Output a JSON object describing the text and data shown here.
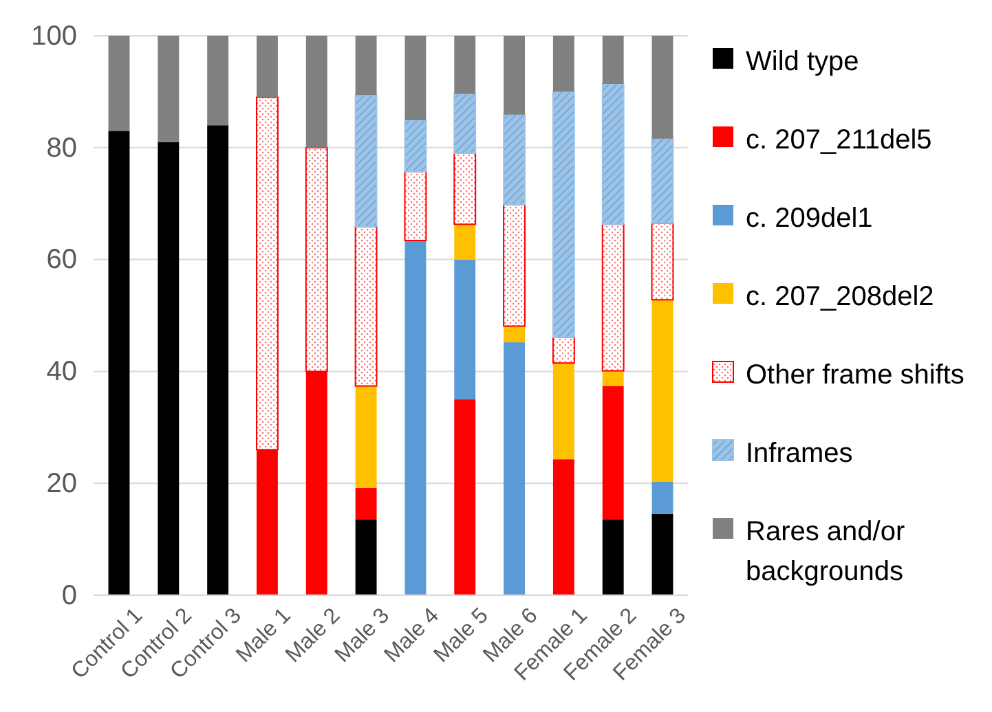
{
  "chart_data": {
    "type": "bar",
    "stacked": true,
    "legend": "right",
    "grid": "y",
    "categories": [
      "Control 1",
      "Control 2",
      "Control 3",
      "Male 1",
      "Male 2",
      "Male 3",
      "Male 4",
      "Male 5",
      "Male 6",
      "Female 1",
      "Female 2",
      "Female 3"
    ],
    "ylim": [
      0,
      100
    ],
    "yticks": [
      0,
      20,
      40,
      60,
      80,
      100
    ],
    "series": [
      {
        "name": "Wild type",
        "color": "#000000",
        "values": [
          83,
          81,
          84,
          0,
          0,
          13.5,
          0,
          0,
          0,
          0,
          13.5,
          14.5
        ]
      },
      {
        "name": "c. 207_211del5",
        "color": "#ff0000",
        "values": [
          0,
          0,
          0,
          26,
          40,
          5.7,
          0,
          35,
          0,
          24.3,
          23.9,
          0
        ]
      },
      {
        "name": "c. 209del1",
        "color": "#5b9bd5",
        "values": [
          0,
          0,
          0,
          0,
          0,
          0,
          63.4,
          25,
          45.2,
          0,
          0,
          5.8
        ]
      },
      {
        "name": "c. 207_208del2",
        "color": "#ffc000",
        "values": [
          0,
          0,
          0,
          0,
          0,
          18.2,
          0,
          6.3,
          2.9,
          17.2,
          2.7,
          32.5
        ]
      },
      {
        "name": "Other frame shifts",
        "color": "#ff0000",
        "values": [
          0,
          0,
          0,
          63,
          40,
          28.5,
          12.3,
          12.7,
          21.7,
          4.6,
          26.2,
          13.7
        ]
      },
      {
        "name": "Inframes",
        "color": "#9dc3e6",
        "values": [
          0,
          0,
          0,
          0,
          0,
          23.5,
          9.2,
          10.6,
          16.1,
          43.9,
          25.1,
          15.1
        ]
      },
      {
        "name": "Rares and/or backgrounds",
        "color": "#808080",
        "values": [
          17,
          19,
          16,
          11,
          20,
          10.6,
          15.1,
          10.4,
          14.1,
          10,
          8.6,
          18.4
        ]
      }
    ]
  }
}
